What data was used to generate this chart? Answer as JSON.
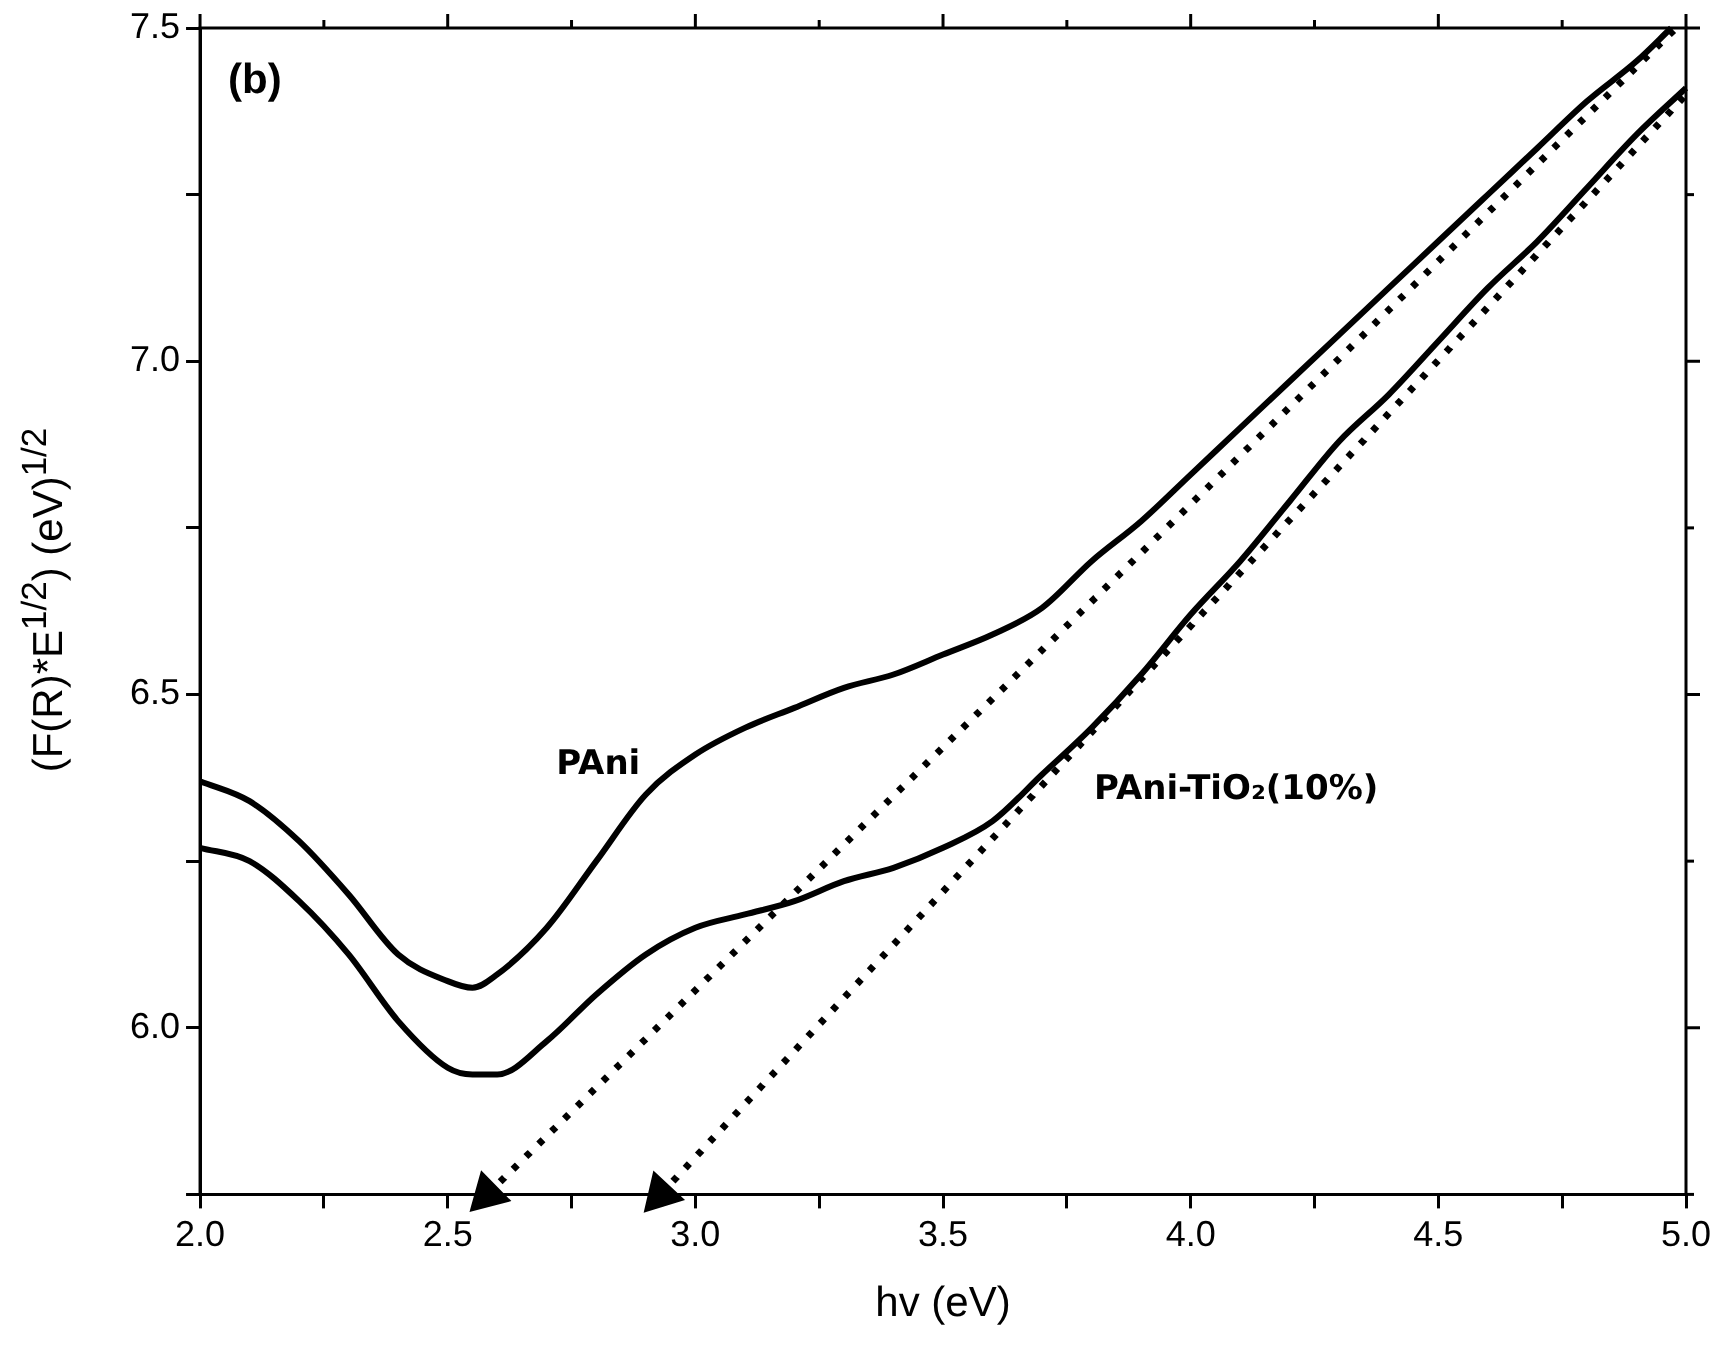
{
  "chart_data": {
    "type": "line",
    "xlabel": "hv (eV)",
    "ylabel": "(F(R)*E$^{1/2}$) (eV)$^{1/2}$",
    "annotations": [
      "(b)"
    ],
    "xlim": [
      2,
      5
    ],
    "ylim": [
      5.75,
      7.5
    ],
    "xticks": [
      {
        "value": 2,
        "label": "2.0"
      },
      {
        "value": 2.25,
        "label": null
      },
      {
        "value": 2.5,
        "label": "2.5"
      },
      {
        "value": 2.75,
        "label": null
      },
      {
        "value": 3,
        "label": "3.0"
      },
      {
        "value": 3.25,
        "label": null
      },
      {
        "value": 3.5,
        "label": "3.5"
      },
      {
        "value": 3.75,
        "label": null
      },
      {
        "value": 4,
        "label": "4.0"
      },
      {
        "value": 4.25,
        "label": null
      },
      {
        "value": 4.5,
        "label": "4.5"
      },
      {
        "value": 4.75,
        "label": null
      },
      {
        "value": 5,
        "label": "5.0"
      }
    ],
    "yticks": [
      {
        "value": 5.75,
        "label": null
      },
      {
        "value": 6,
        "label": "6.0"
      },
      {
        "value": 6.25,
        "label": null
      },
      {
        "value": 6.5,
        "label": "6.5"
      },
      {
        "value": 6.75,
        "label": null
      },
      {
        "value": 7,
        "label": "7.0"
      },
      {
        "value": 7.25,
        "label": null
      },
      {
        "value": 7.5,
        "label": "7.5"
      }
    ],
    "grid": false,
    "legend": false,
    "line_style": "solid",
    "series": [
      {
        "name": "PAni",
        "color": "#000000",
        "x": [
          2.0,
          2.1,
          2.2,
          2.3,
          2.4,
          2.5,
          2.55,
          2.6,
          2.7,
          2.8,
          2.9,
          3.0,
          3.1,
          3.2,
          3.3,
          3.4,
          3.5,
          3.6,
          3.7,
          3.8,
          3.9,
          4.0,
          4.1,
          4.2,
          4.3,
          4.4,
          4.5,
          4.6,
          4.7,
          4.8,
          4.9,
          4.97
        ],
        "values": [
          6.37,
          6.34,
          6.28,
          6.2,
          6.11,
          6.07,
          6.06,
          6.08,
          6.15,
          6.25,
          6.35,
          6.41,
          6.45,
          6.48,
          6.51,
          6.53,
          6.56,
          6.59,
          6.63,
          6.7,
          6.76,
          6.83,
          6.9,
          6.97,
          7.04,
          7.11,
          7.18,
          7.25,
          7.32,
          7.39,
          7.45,
          7.5
        ]
      },
      {
        "name": "PAni-TiO₂(10%)",
        "color": "#000000",
        "x": [
          2.0,
          2.1,
          2.2,
          2.3,
          2.4,
          2.5,
          2.55,
          2.6,
          2.7,
          2.8,
          2.9,
          3.0,
          3.1,
          3.2,
          3.3,
          3.4,
          3.5,
          3.6,
          3.7,
          3.8,
          3.9,
          4.0,
          4.1,
          4.2,
          4.3,
          4.4,
          4.5,
          4.6,
          4.7,
          4.8,
          4.9,
          5.0
        ],
        "values": [
          6.27,
          6.25,
          6.19,
          6.11,
          6.01,
          5.94,
          5.93,
          5.93,
          5.98,
          6.05,
          6.11,
          6.15,
          6.17,
          6.19,
          6.22,
          6.24,
          6.27,
          6.31,
          6.38,
          6.45,
          6.53,
          6.62,
          6.7,
          6.79,
          6.88,
          6.95,
          7.03,
          7.11,
          7.18,
          7.26,
          7.34,
          7.41
        ]
      },
      {
        "color": "#000000",
        "line_style": "dotted",
        "x": [
          2.58,
          4.98
        ],
        "values": [
          5.75,
          7.5
        ]
      },
      {
        "color": "#000000",
        "line_style": "dotted",
        "x": [
          2.93,
          5.0
        ],
        "values": [
          5.75,
          7.4
        ]
      }
    ]
  }
}
